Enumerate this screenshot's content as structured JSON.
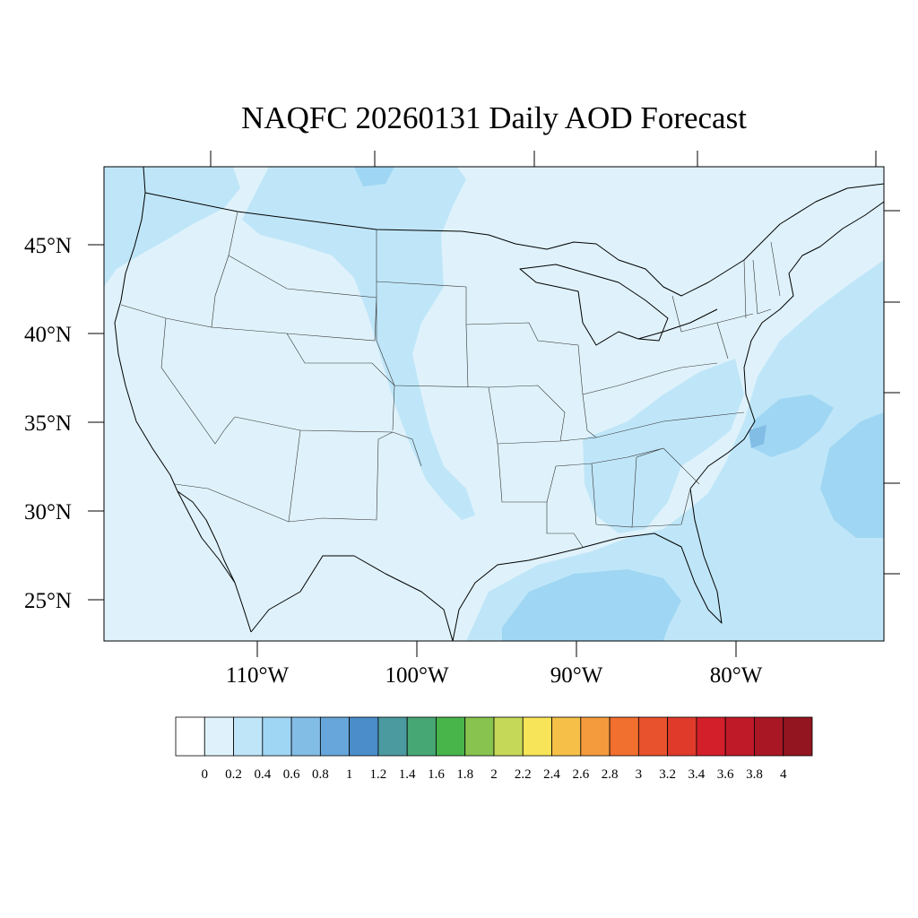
{
  "title": "NAQFC 20260131 Daily AOD Forecast",
  "map": {
    "background_color": "#dff2fb",
    "lat_labels": [
      "45°N",
      "40°N",
      "35°N",
      "30°N",
      "25°N"
    ],
    "lon_labels": [
      "110°W",
      "100°W",
      "90°W",
      "80°W"
    ]
  },
  "colorbar": {
    "colors": [
      "#ffffff",
      "#dff2fb",
      "#bfe6f8",
      "#9fd6f3",
      "#82bde6",
      "#66a6da",
      "#4a8dca",
      "#4b9aa0",
      "#47a774",
      "#48b54b",
      "#87c34e",
      "#c6d858",
      "#f7e458",
      "#f6c048",
      "#f49b3e",
      "#f16f2f",
      "#e8522c",
      "#df3a2a",
      "#d31f2a",
      "#bf1a28",
      "#a91725",
      "#921520"
    ],
    "labels": [
      "0",
      "0.2",
      "0.4",
      "0.6",
      "0.8",
      "1",
      "1.2",
      "1.4",
      "1.6",
      "1.8",
      "2",
      "2.2",
      "2.4",
      "2.6",
      "2.8",
      "3",
      "3.2",
      "3.4",
      "3.6",
      "3.8",
      "4"
    ]
  }
}
